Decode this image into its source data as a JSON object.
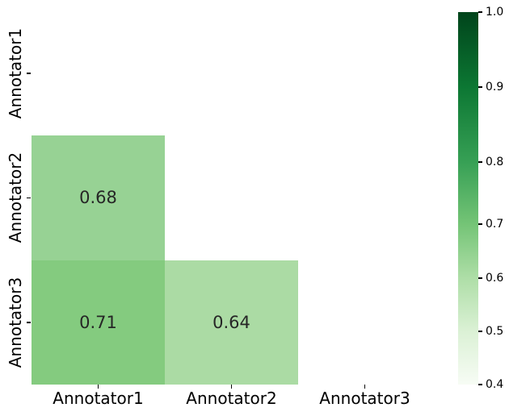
{
  "figure": {
    "background_color": "#ffffff",
    "axis_text_color": "#000000",
    "annotation_text_color": "#262626"
  },
  "chart_data": {
    "type": "heatmap",
    "title": "",
    "xlabel": "",
    "ylabel": "",
    "colormap": "Greens",
    "mask": "upper-triangle-and-diagonal",
    "categories": [
      "Annotator1",
      "Annotator2",
      "Annotator3"
    ],
    "x_tick_labels": [
      "Annotator1",
      "Annotator2",
      "Annotator3"
    ],
    "y_tick_labels": [
      "Annotator1",
      "Annotator2",
      "Annotator3"
    ],
    "matrix": [
      [
        null,
        null,
        null
      ],
      [
        0.68,
        null,
        null
      ],
      [
        0.71,
        0.64,
        null
      ]
    ],
    "cells": [
      {
        "row": 1,
        "col": 0,
        "value": 0.68,
        "label": "0.68",
        "color": "#97d294"
      },
      {
        "row": 2,
        "col": 0,
        "value": 0.71,
        "label": "0.71",
        "color": "#84cb7f"
      },
      {
        "row": 2,
        "col": 1,
        "value": 0.64,
        "label": "0.64",
        "color": "#abdba4"
      }
    ],
    "colorbar": {
      "min": 0.4,
      "max": 1.0,
      "position": "right",
      "ticks": [
        {
          "label": "1.0",
          "value": 1.0,
          "pos": 0.0,
          "color": "#00441b"
        },
        {
          "label": "0.9",
          "value": 0.9,
          "pos": 0.201,
          "color": "#0c7733"
        },
        {
          "label": "0.8",
          "value": 0.8,
          "pos": 0.403,
          "color": "#37a055"
        },
        {
          "label": "0.7",
          "value": 0.7,
          "pos": 0.569,
          "color": "#74c476"
        },
        {
          "label": "0.6",
          "value": 0.6,
          "pos": 0.714,
          "color": "#aedea7"
        },
        {
          "label": "0.5",
          "value": 0.5,
          "pos": 0.857,
          "color": "#dbf1d5"
        },
        {
          "label": "0.4",
          "value": 0.4,
          "pos": 1.0,
          "color": "#f7fcf5"
        }
      ]
    }
  }
}
